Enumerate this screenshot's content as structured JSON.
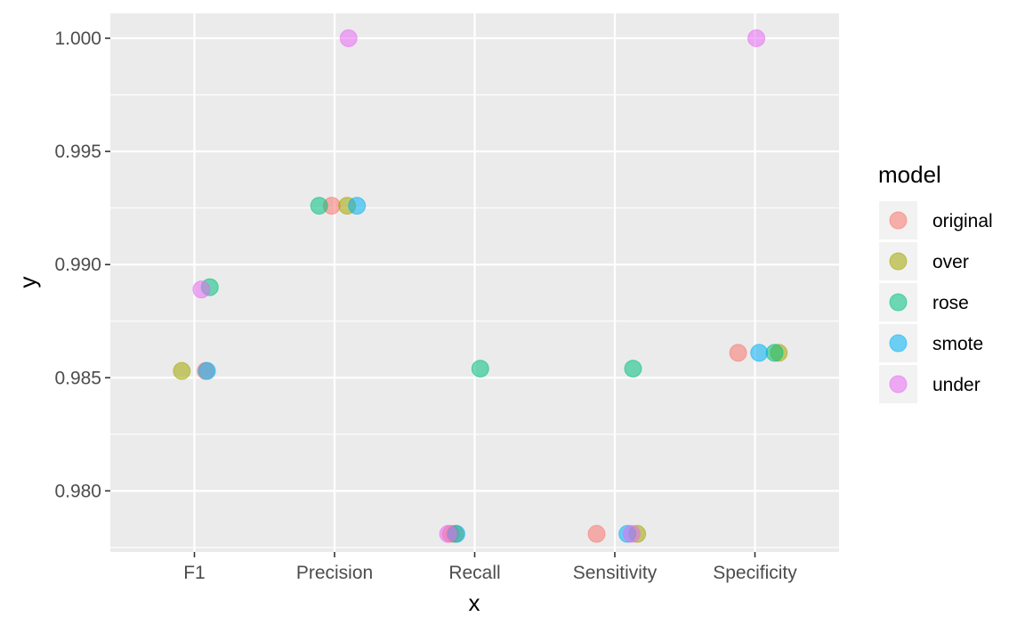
{
  "chart_data": {
    "type": "scatter",
    "xlabel": "x",
    "ylabel": "y",
    "categories": [
      "F1",
      "Precision",
      "Recall",
      "Sensitivity",
      "Specificity"
    ],
    "ylim": [
      0.9773,
      1.0011
    ],
    "yticks": [
      "0.980",
      "0.985",
      "0.990",
      "0.995",
      "1.000"
    ],
    "ytick_values": [
      0.98,
      0.985,
      0.99,
      0.995,
      1.0
    ],
    "grid": true,
    "legend": {
      "title": "model",
      "placement": "right"
    },
    "series": [
      {
        "name": "original",
        "color": "#F8766D",
        "values": [
          0.9853,
          0.9926,
          0.9781,
          0.9781,
          0.9861
        ],
        "jitter": [
          0.08,
          -0.02,
          -0.17,
          -0.13,
          -0.12
        ]
      },
      {
        "name": "over",
        "color": "#A3A500",
        "values": [
          0.9853,
          0.9926,
          0.9781,
          0.9781,
          0.9861
        ],
        "jitter": [
          -0.09,
          0.09,
          -0.14,
          0.16,
          0.17
        ]
      },
      {
        "name": "rose",
        "color": "#00BF7D",
        "values": [
          0.989,
          0.9926,
          0.9854,
          0.9854,
          0.9861
        ],
        "jitter": [
          0.11,
          -0.11,
          0.04,
          0.13,
          0.14
        ]
      },
      {
        "name": "smote",
        "color": "#00B0F6",
        "values": [
          0.9853,
          0.9926,
          0.9781,
          0.9781,
          0.9861
        ],
        "jitter": [
          0.09,
          0.16,
          -0.13,
          0.09,
          0.03
        ]
      },
      {
        "name": "under",
        "color": "#E76BF3",
        "values": [
          0.9889,
          1.0,
          0.9781,
          0.9781,
          1.0
        ],
        "jitter": [
          0.05,
          0.1,
          -0.19,
          0.12,
          0.01
        ]
      }
    ]
  }
}
